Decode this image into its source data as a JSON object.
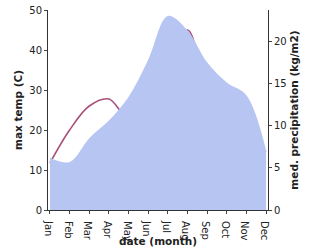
{
  "chart_data": {
    "type": "line",
    "x_label": "date (month)",
    "y_label": "max temp (C)",
    "y2_label": "med. precipitation (kg/m2)",
    "categories": [
      "Jan",
      "Feb",
      "Mar",
      "Apr",
      "May",
      "Jun",
      "Jul",
      "Aug",
      "Sep",
      "Oct",
      "Nov",
      "Dec"
    ],
    "series": [
      {
        "type": "area",
        "axis": "y2",
        "color": "#b7c5f2",
        "values": [
          6.2,
          5.7,
          8.5,
          10.6,
          13.4,
          17.8,
          23.0,
          21.3,
          17.5,
          15.1,
          13.6,
          7.1
        ]
      },
      {
        "type": "line",
        "color": "#a8507a",
        "values": [
          11.75,
          20,
          26,
          27.75,
          23,
          32,
          32.5,
          45,
          32.5,
          28.75,
          19.5,
          14.5
        ]
      }
    ],
    "ylim": [
      0,
      50
    ],
    "yticks": [
      0,
      10,
      20,
      30,
      40,
      50
    ],
    "y2lim": [
      0,
      23.7
    ],
    "y2ticks": [
      0,
      5,
      10,
      15,
      20
    ],
    "grid": false
  }
}
